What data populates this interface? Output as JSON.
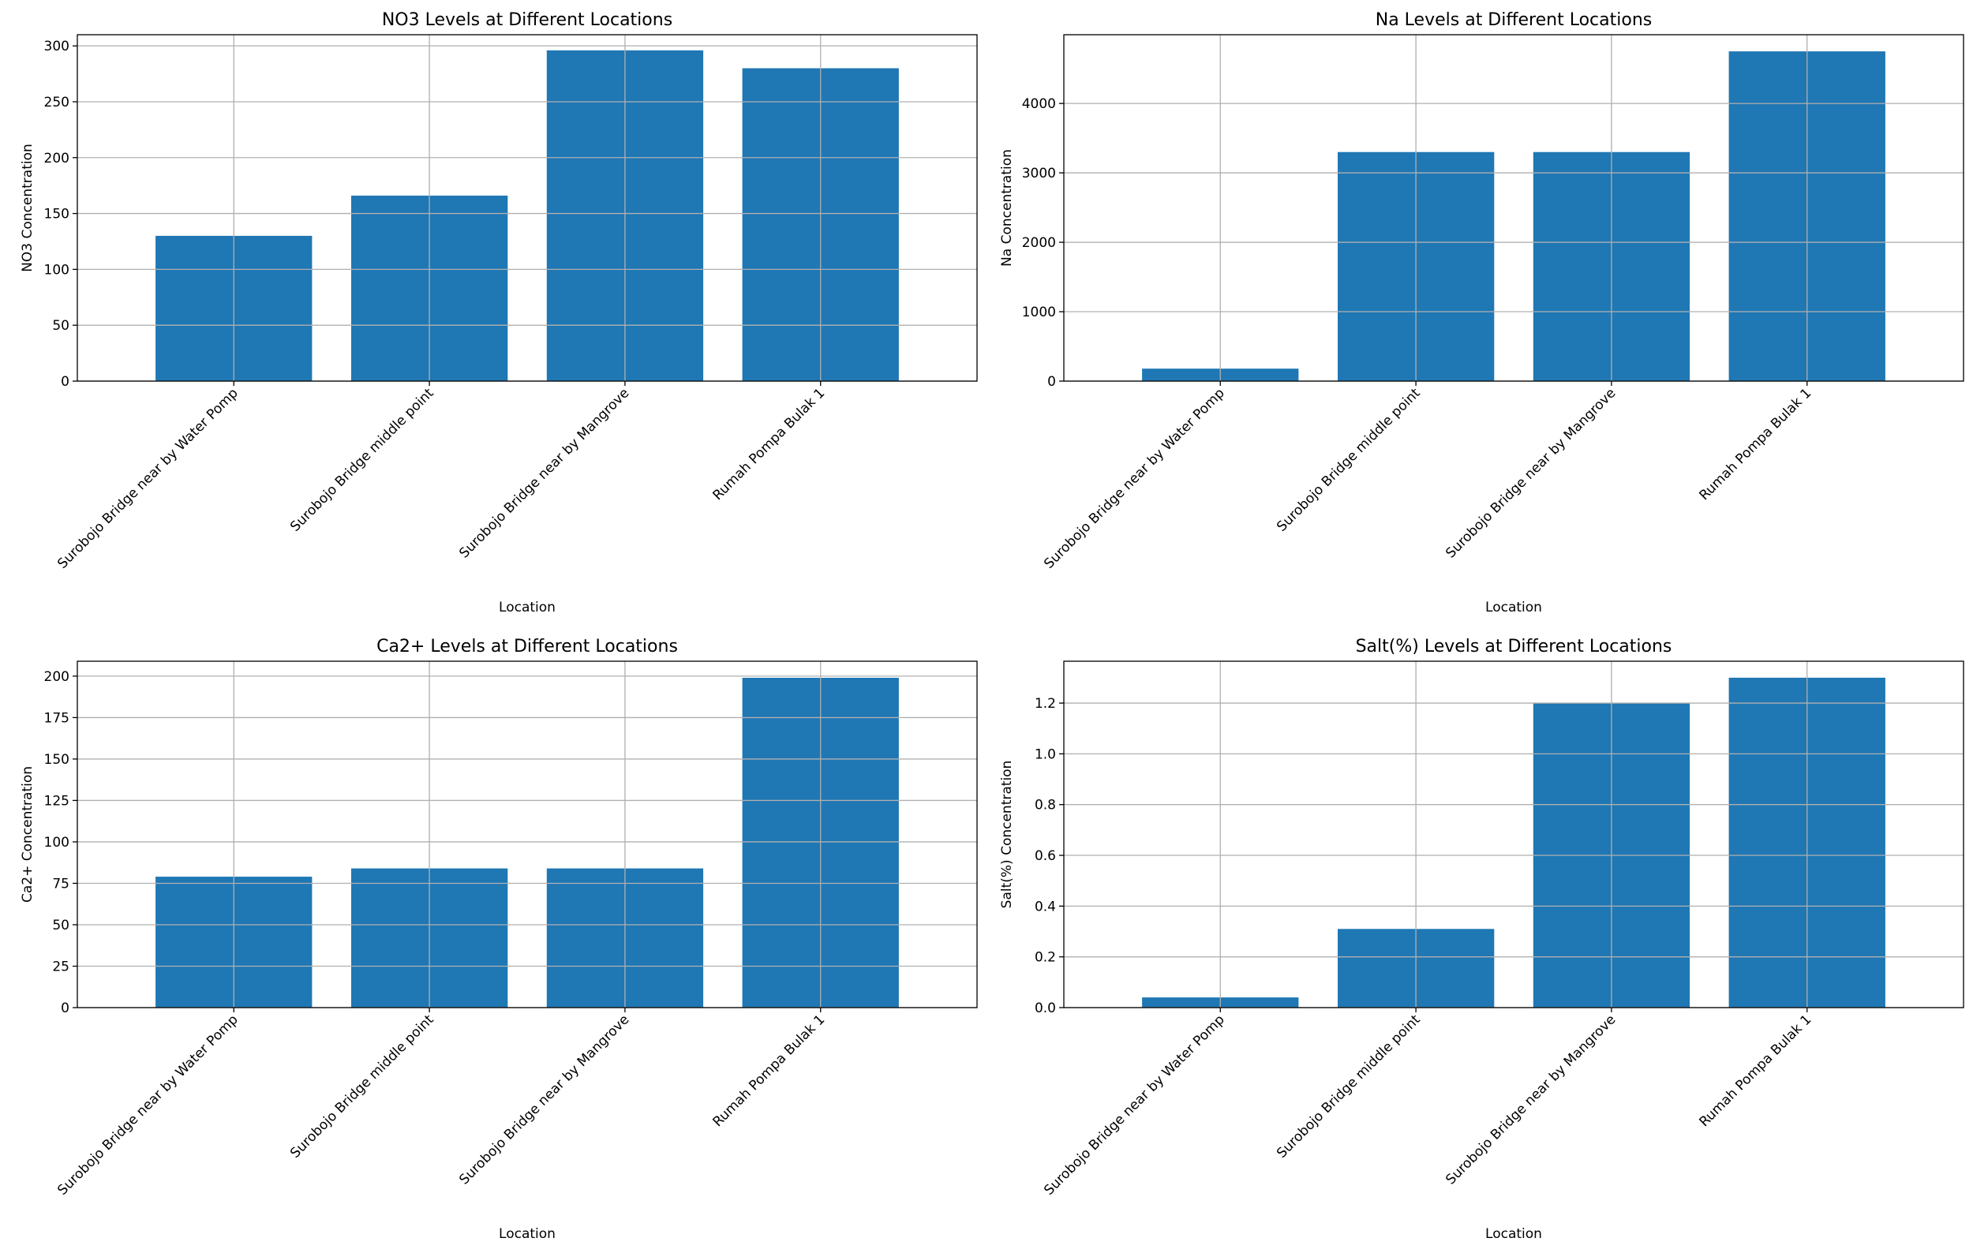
{
  "figure": {
    "bar_color": "#1f77b4",
    "grid_color": "#b0b0b0",
    "axis_color": "#000000"
  },
  "chart_data": [
    {
      "type": "bar",
      "title": "NO3 Levels at Different Locations",
      "xlabel": "Location",
      "ylabel": "NO3 Concentration",
      "categories": [
        "Surobojo Bridge near by Water Pomp",
        "Surobojo Bridge middle point",
        "Surobojo Bridge near by Mangrove",
        "Rumah Pompa Bulak 1"
      ],
      "values": [
        130,
        166,
        296,
        280
      ],
      "ylim": [
        0,
        310
      ],
      "yticks": [
        0,
        50,
        100,
        150,
        200,
        250,
        300
      ],
      "ytick_labels": [
        "0",
        "50",
        "100",
        "150",
        "200",
        "250",
        "300"
      ],
      "grid": true
    },
    {
      "type": "bar",
      "title": "Na Levels at Different Locations",
      "xlabel": "Location",
      "ylabel": "Na Concentration",
      "categories": [
        "Surobojo Bridge near by Water Pomp",
        "Surobojo Bridge middle point",
        "Surobojo Bridge near by Mangrove",
        "Rumah Pompa Bulak 1"
      ],
      "values": [
        180,
        3300,
        3300,
        4750
      ],
      "ylim": [
        0,
        4990
      ],
      "yticks": [
        0,
        1000,
        2000,
        3000,
        4000
      ],
      "ytick_labels": [
        "0",
        "1000",
        "2000",
        "3000",
        "4000"
      ],
      "grid": true
    },
    {
      "type": "bar",
      "title": "Ca2+ Levels at Different Locations",
      "xlabel": "Location",
      "ylabel": "Ca2+ Concentration",
      "categories": [
        "Surobojo Bridge near by Water Pomp",
        "Surobojo Bridge middle point",
        "Surobojo Bridge near by Mangrove",
        "Rumah Pompa Bulak 1"
      ],
      "values": [
        79,
        84,
        84,
        199
      ],
      "ylim": [
        0,
        209
      ],
      "yticks": [
        0,
        25,
        50,
        75,
        100,
        125,
        150,
        175,
        200
      ],
      "ytick_labels": [
        "0",
        "25",
        "50",
        "75",
        "100",
        "125",
        "150",
        "175",
        "200"
      ],
      "grid": true
    },
    {
      "type": "bar",
      "title": "Salt(%) Levels at Different Locations",
      "xlabel": "Location",
      "ylabel": "Salt(%) Concentration",
      "categories": [
        "Surobojo Bridge near by Water Pomp",
        "Surobojo Bridge middle point",
        "Surobojo Bridge near by Mangrove",
        "Rumah Pompa Bulak 1"
      ],
      "values": [
        0.04,
        0.31,
        1.2,
        1.3
      ],
      "ylim": [
        0,
        1.365
      ],
      "yticks": [
        0,
        0.2,
        0.4,
        0.6,
        0.8,
        1.0,
        1.2
      ],
      "ytick_labels": [
        "0.0",
        "0.2",
        "0.4",
        "0.6",
        "0.8",
        "1.0",
        "1.2"
      ],
      "grid": true
    }
  ]
}
